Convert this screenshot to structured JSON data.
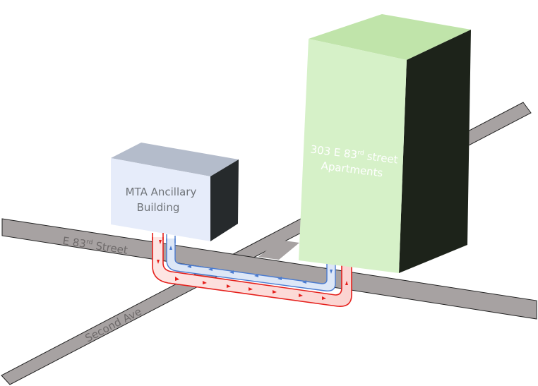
{
  "streets": {
    "e83": {
      "name": "E 83",
      "sup": "rd",
      "suffix": " Street"
    },
    "second_ave": {
      "name": "Second Ave"
    }
  },
  "buildings": {
    "mta": {
      "line1": "MTA Ancillary",
      "line2": "Building"
    },
    "apartments": {
      "line1_pre": "303 E 83",
      "line1_sup": "rd",
      "line1_post": " street",
      "line2": "Apartments"
    }
  },
  "colors": {
    "street_fill": "#a7a2a2",
    "mta_front": "#e6ecfa",
    "mta_top": "#b4bccb",
    "mta_side": "#262a2c",
    "apt_front": "#d6f1c8",
    "apt_top": "#c0e4aa",
    "apt_side": "#1d231a",
    "supply_pipe": "#e5211d",
    "return_pipe": "#4a7bd0"
  }
}
